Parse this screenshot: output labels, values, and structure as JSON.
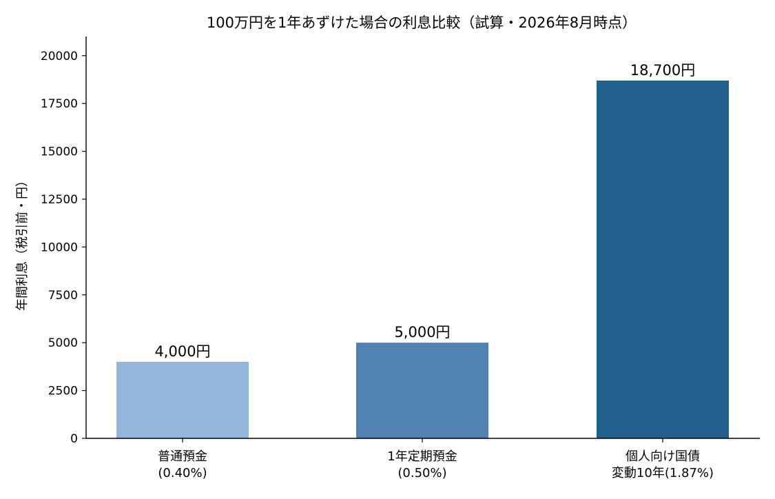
{
  "chart_data": {
    "type": "bar",
    "title": "100万円を1年あずけた場合の利息比較（試算・2026年8月時点）",
    "xlabel": "",
    "ylabel": "年間利息（税引前・円）",
    "categories": [
      [
        "普通預金",
        "(0.40%)"
      ],
      [
        "1年定期預金",
        "(0.50%)"
      ],
      [
        "個人向け国債",
        "変動10年(1.87%)"
      ]
    ],
    "values": [
      4000,
      5000,
      18700
    ],
    "data_labels": [
      "4,000円",
      "5,000円",
      "18,700円"
    ],
    "colors": [
      "#92b5da",
      "#4f81b1",
      "#21608c"
    ],
    "ylim": [
      0,
      21000
    ],
    "yticks": [
      0,
      2500,
      5000,
      7500,
      10000,
      12500,
      15000,
      17500,
      20000
    ],
    "ytick_labels": [
      "0",
      "2500",
      "5000",
      "7500",
      "10000",
      "12500",
      "15000",
      "17500",
      "20000"
    ],
    "grid": false,
    "legend": "none"
  }
}
